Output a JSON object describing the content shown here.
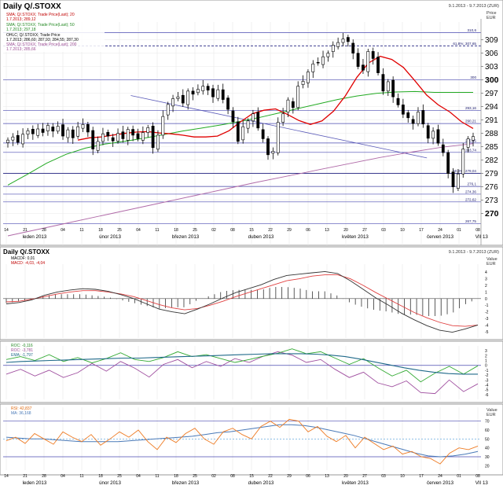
{
  "window": {
    "title": "Daily Q/.STOXX",
    "date_range": "9.1.2013 - 9.7.2013 (ZUR)",
    "price_unit_label": "Price",
    "price_unit_currency": "EUR",
    "value_label": "Value",
    "value_currency": "EUR"
  },
  "colors": {
    "candle_up": "#ffffff",
    "candle_down": "#000000",
    "sma20": "#e00000",
    "sma50": "#22aa22",
    "sma200": "#b06aa8",
    "trendline": "#5a5ab8",
    "hline": "#4a4ab0",
    "fib_line": "#202080"
  },
  "x_axis": {
    "day_ticks": [
      "14",
      "21",
      "28",
      "04",
      "11",
      "18",
      "25",
      "04",
      "11",
      "18",
      "25",
      "02",
      "08",
      "15",
      "22",
      "29",
      "06",
      "13",
      "20",
      "27",
      "03",
      "10",
      "17",
      "24",
      "01",
      "08"
    ],
    "month_labels": [
      "leden 2013",
      "únor 2013",
      "březen 2013",
      "duben 2013",
      "květen 2013",
      "červen 2013",
      "VII 13"
    ]
  },
  "panels": {
    "price": {
      "legend": [
        {
          "label": "SMA; Q/.STOXX; Trade Price(Last); 20",
          "value": "1.7.2013; 289,12"
        },
        {
          "label": "SMA; Q/.STOXX; Trade Price(Last); 50",
          "value": "1.7.2013; 297,18"
        },
        {
          "label": "OHLC; Q/.STOXX; Trade Price",
          "value": "1.7.2013; 286,60; 287,93; 284,55; 287,30"
        },
        {
          "label": "SMA; Q/.STOXX; Trade Price(Last); 200",
          "value": "1.7.2013; 285,66"
        }
      ],
      "hline_labels": [
        "310,6",
        "61,8%; 307,65",
        "300",
        "293,16",
        "290,21",
        "285,85",
        "283,74",
        "50,0%; 279,04",
        "276,1",
        "274,36",
        "272,62",
        "267,75"
      ]
    },
    "macd": {
      "legend": [
        {
          "label": "MACDF",
          "value": "0,01"
        },
        {
          "label": "MACD",
          "value": "-4,03, -4,04"
        }
      ],
      "ticks": [
        "4",
        "3",
        "2",
        "1",
        "0",
        "-1",
        "-2",
        "-3",
        "-4",
        "-5"
      ]
    },
    "roc": {
      "legend": [
        {
          "label": "ROC",
          "value": "-0,116"
        },
        {
          "label": "ROC",
          "value": "-3,781"
        },
        {
          "label": "EMA",
          "value": "-1,797"
        }
      ],
      "ticks": [
        "3",
        "2",
        "1",
        "0",
        "-1",
        "-2",
        "-3",
        "-4",
        "-5",
        "-6"
      ]
    },
    "rsi": {
      "legend": [
        {
          "label": "RSI",
          "value": "42,837"
        },
        {
          "label": "MA",
          "value": "36,168"
        }
      ],
      "ticks": [
        "70",
        "60",
        "50",
        "40",
        "30",
        "20"
      ]
    }
  },
  "chart_data": [
    {
      "type": "candlestick",
      "title": "Daily Q/.STOXX",
      "ylim": [
        265,
        313
      ],
      "y_ticks": [
        270,
        273,
        276,
        279,
        282,
        285,
        288,
        291,
        294,
        297,
        300,
        303,
        306,
        309
      ],
      "x_start": "2013-01-09",
      "x_end": "2013-07-09",
      "series": [
        {
          "name": "Close (approx.)",
          "values": [
            286.5,
            287.2,
            286.0,
            287.8,
            288.6,
            287.9,
            289.0,
            288.2,
            289.8,
            288.5,
            289.6,
            287.4,
            288.8,
            287.0,
            289.5,
            290.0,
            288.3,
            284.5,
            286.2,
            287.9,
            287.4,
            286.3,
            288.0,
            286.8,
            288.9,
            287.6,
            286.8,
            288.2,
            289.3,
            284.8,
            287.6,
            291.8,
            294.5,
            295.8,
            296.2,
            294.8,
            297.5,
            296.8,
            297.9,
            298.6,
            297.7,
            296.2,
            297.8,
            295.6,
            293.4,
            290.6,
            286.2,
            289.5,
            290.8,
            292.4,
            289.2,
            286.8,
            283.2,
            284.0,
            290.5,
            292.4,
            295.5,
            293.8,
            298.6,
            299.7,
            301.8,
            303.6,
            303.8,
            305.2,
            306.0,
            307.8,
            308.4,
            309.2,
            308.6,
            306.0,
            303.0,
            302.2,
            306.4,
            304.8,
            301.6,
            297.5,
            299.6,
            296.2,
            294.4,
            292.3,
            291.5,
            290.2,
            292.8,
            290.1,
            286.9,
            288.5,
            285.8,
            283.7,
            279.0,
            276.0,
            278.9,
            284.5,
            286.8,
            287.3
          ]
        },
        {
          "name": "SMA 20",
          "values": [
            286.5,
            287.0,
            287.2,
            287.6,
            288.0,
            288.3,
            288.4,
            288.1,
            287.9,
            287.6,
            287.2,
            287.2,
            287.4,
            288.6,
            290.6,
            292.4,
            293.2,
            293.5,
            292.3,
            290.9,
            290.0,
            290.8,
            293.0,
            296.4,
            300.6,
            303.8,
            305.3,
            304.6,
            302.8,
            299.8,
            296.6,
            294.4,
            292.8,
            290.6,
            289.1
          ]
        },
        {
          "name": "SMA 50",
          "values": [
            276.4,
            278.8,
            281.3,
            283.3,
            284.7,
            285.6,
            286.2,
            286.9,
            287.7,
            288.5,
            289.2,
            289.9,
            290.7,
            291.6,
            292.6,
            293.6,
            294.6,
            295.6,
            296.4,
            297.0,
            297.3,
            297.4,
            297.2,
            297.2,
            297.2
          ]
        },
        {
          "name": "SMA 200",
          "values": [
            265.0,
            266.5,
            268.0,
            269.5,
            271.0,
            272.5,
            274.0,
            275.5,
            277.0,
            278.4,
            279.8,
            281.2,
            282.6,
            283.8,
            284.9,
            285.7
          ]
        }
      ],
      "hlines": [
        310.6,
        307.65,
        300,
        293.16,
        290.21,
        285.85,
        283.74,
        279.04,
        276.1,
        274.36,
        272.62,
        267.75
      ],
      "grid": true
    },
    {
      "type": "line",
      "title": "MACD",
      "ylim": [
        -5.5,
        4.5
      ],
      "series": [
        {
          "name": "MACDF",
          "values": [
            -0.8,
            -0.6,
            -0.2,
            0.5,
            1.0,
            1.3,
            1.5,
            1.4,
            1.1,
            0.6,
            0.0,
            -0.8,
            -1.6,
            -2.0,
            -2.3,
            -1.6,
            -0.8,
            0.1,
            0.9,
            1.5,
            2.1,
            2.9,
            3.5,
            3.7,
            3.9,
            4.1,
            3.8,
            2.7,
            1.4,
            0.1,
            -1.0,
            -2.2,
            -3.2,
            -4.1,
            -4.8,
            -5.1,
            -4.6,
            -4.0
          ]
        },
        {
          "name": "MACD",
          "values": [
            -0.5,
            -0.4,
            -0.1,
            0.3,
            0.7,
            1.0,
            1.2,
            1.2,
            1.0,
            0.7,
            0.3,
            -0.3,
            -0.9,
            -1.4,
            -1.7,
            -1.5,
            -1.0,
            -0.4,
            0.3,
            0.9,
            1.5,
            2.1,
            2.7,
            3.0,
            3.4,
            3.6,
            3.6,
            3.0,
            2.0,
            0.9,
            -0.1,
            -1.1,
            -2.1,
            -2.9,
            -3.6,
            -4.1,
            -4.2,
            -4.0
          ]
        }
      ],
      "grid": true
    },
    {
      "type": "line",
      "title": "ROC",
      "ylim": [
        -7,
        4
      ],
      "series": [
        {
          "name": "ROC 1",
          "values": [
            1.2,
            1.8,
            1.0,
            2.2,
            0.8,
            1.6,
            0.5,
            1.4,
            2.6,
            1.2,
            0.8,
            1.6,
            2.8,
            1.8,
            2.2,
            1.4,
            0.6,
            1.2,
            1.9,
            2.5,
            3.4,
            2.4,
            2.8,
            1.5,
            0.2,
            1.4,
            -0.5,
            -2.2,
            -1.0,
            -3.4,
            -1.6,
            -0.2,
            -1.8,
            -0.1
          ]
        },
        {
          "name": "ROC 2",
          "values": [
            -1.8,
            -0.8,
            -2.2,
            -1.0,
            -2.5,
            -1.5,
            0.4,
            -1.2,
            0.8,
            -0.6,
            -2.4,
            0.2,
            1.2,
            -0.5,
            0.8,
            -0.2,
            1.4,
            0.6,
            1.9,
            2.8,
            2.1,
            0.6,
            1.2,
            -0.8,
            -2.5,
            -1.4,
            -3.6,
            -4.4,
            -3.2,
            -5.6,
            -5.8,
            -3.0,
            -5.4,
            -3.8
          ]
        },
        {
          "name": "EMA",
          "values": [
            0.6,
            0.8,
            0.9,
            1.0,
            1.1,
            1.2,
            1.3,
            1.4,
            1.5,
            1.5,
            1.6,
            1.7,
            1.8,
            1.9,
            2.0,
            2.1,
            2.2,
            2.3,
            2.4,
            2.4,
            2.4,
            2.3,
            2.1,
            1.8,
            1.3,
            0.7,
            0.1,
            -0.5,
            -1.0,
            -1.4,
            -1.7,
            -1.8,
            -1.8
          ]
        }
      ],
      "grid": true
    },
    {
      "type": "line",
      "title": "RSI",
      "ylim": [
        15,
        75
      ],
      "series": [
        {
          "name": "RSI",
          "values": [
            48,
            52,
            45,
            56,
            50,
            44,
            58,
            52,
            47,
            55,
            43,
            50,
            58,
            52,
            60,
            47,
            38,
            52,
            46,
            56,
            62,
            50,
            44,
            58,
            62,
            55,
            50,
            64,
            70,
            63,
            72,
            70,
            58,
            64,
            53,
            47,
            54,
            40,
            52,
            45,
            38,
            42,
            33,
            36,
            30,
            28,
            22,
            34,
            40,
            38,
            42
          ]
        },
        {
          "name": "MA",
          "values": [
            52,
            51,
            50,
            50,
            49,
            48,
            47,
            47,
            47,
            47,
            48,
            49,
            50,
            51,
            52,
            53,
            55,
            57,
            58,
            60,
            62,
            64,
            66,
            66,
            65,
            63,
            60,
            57,
            54,
            50,
            46,
            42,
            38,
            34,
            31,
            30,
            31,
            33,
            36
          ]
        }
      ],
      "grid": true
    }
  ]
}
